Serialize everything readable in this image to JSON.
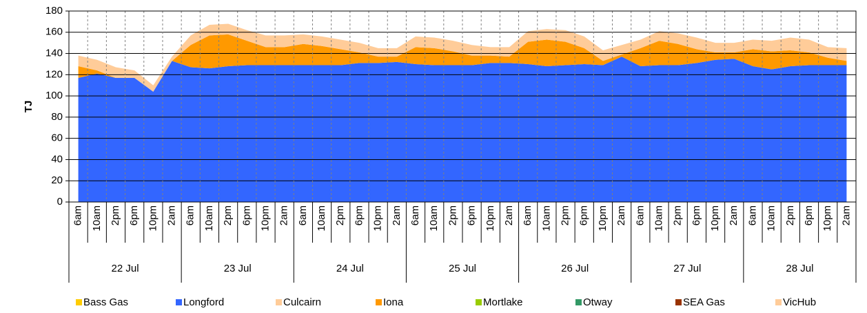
{
  "chart_data": {
    "type": "stacked_area",
    "y_label": "TJ",
    "categories": [
      "6am",
      "10am",
      "2pm",
      "6pm",
      "10pm",
      "2am",
      "6am",
      "10am",
      "2pm",
      "6pm",
      "10pm",
      "2am",
      "6am",
      "10am",
      "2pm",
      "6pm",
      "10pm",
      "2am",
      "6am",
      "10am",
      "2pm",
      "6pm",
      "10pm",
      "2am",
      "6am",
      "10am",
      "2pm",
      "6pm",
      "10pm",
      "2am",
      "6am",
      "10am",
      "2pm",
      "6pm",
      "10pm",
      "2am",
      "6am",
      "10am",
      "2pm",
      "6pm",
      "10pm",
      "2am"
    ],
    "groups": [
      "22 Jul",
      "23 Jul",
      "24 Jul",
      "25 Jul",
      "26 Jul",
      "27 Jul",
      "28 Jul"
    ],
    "ylim": [
      0,
      180
    ],
    "yticks": [
      0,
      20,
      40,
      60,
      80,
      100,
      120,
      140,
      160,
      180
    ],
    "grid": true,
    "legend": "bottom",
    "series": [
      {
        "name": "Bass Gas",
        "color": "#ffcc00",
        "values": [
          0,
          0,
          0,
          0,
          0,
          0,
          0,
          0,
          0,
          0,
          0,
          0,
          0,
          0,
          0,
          0,
          0,
          0,
          0,
          0,
          0,
          0,
          0,
          0,
          0,
          0,
          0,
          0,
          0,
          0,
          0,
          0,
          0,
          0,
          0,
          0,
          0,
          0,
          0,
          0,
          0,
          0
        ]
      },
      {
        "name": "Longford",
        "color": "#3366ff",
        "values": [
          117,
          121,
          117,
          117,
          104,
          133,
          127,
          126,
          128,
          129,
          129,
          129,
          129,
          129,
          129,
          131,
          131,
          132,
          130,
          129,
          129,
          129,
          131,
          131,
          130,
          128,
          129,
          130,
          129,
          137,
          128,
          129,
          129,
          131,
          134,
          135,
          128,
          125,
          128,
          129,
          129,
          129
        ]
      },
      {
        "name": "Culcairn",
        "color": "#ffcc99",
        "values": [
          0,
          0,
          0,
          0,
          0,
          0,
          0,
          0,
          0,
          0,
          0,
          0,
          0,
          0,
          0,
          0,
          0,
          0,
          0,
          0,
          0,
          0,
          0,
          0,
          0,
          0,
          0,
          0,
          0,
          0,
          0,
          0,
          0,
          0,
          0,
          0,
          0,
          0,
          0,
          0,
          0,
          0
        ]
      },
      {
        "name": "Iona",
        "color": "#ff9900",
        "values": [
          11,
          3,
          0,
          0,
          0,
          0,
          21,
          31,
          30,
          23,
          17,
          17,
          20,
          18,
          15,
          10,
          6,
          5,
          16,
          16,
          13,
          9,
          7,
          6,
          21,
          25,
          22,
          15,
          4,
          2,
          17,
          23,
          20,
          13,
          7,
          6,
          16,
          17,
          15,
          12,
          7,
          4
        ]
      },
      {
        "name": "Mortlake",
        "color": "#99cc00",
        "values": [
          0,
          0,
          0,
          0,
          0,
          0,
          0,
          0,
          0,
          0,
          0,
          0,
          0,
          0,
          0,
          0,
          0,
          0,
          0,
          0,
          0,
          0,
          0,
          0,
          0,
          0,
          0,
          0,
          0,
          0,
          0,
          0,
          0,
          0,
          0,
          0,
          0,
          0,
          0,
          0,
          0,
          0
        ]
      },
      {
        "name": "Otway",
        "color": "#339966",
        "values": [
          0,
          0,
          0,
          0,
          0,
          0,
          0,
          0,
          0,
          0,
          0,
          0,
          0,
          0,
          0,
          0,
          0,
          0,
          0,
          0,
          0,
          0,
          0,
          0,
          0,
          0,
          0,
          0,
          0,
          0,
          0,
          0,
          0,
          0,
          0,
          0,
          0,
          0,
          0,
          0,
          0,
          0
        ]
      },
      {
        "name": "SEA Gas",
        "color": "#993300",
        "values": [
          0,
          0,
          0,
          0,
          0,
          0,
          0,
          0,
          0,
          0,
          0,
          0,
          0,
          0,
          0,
          0,
          0,
          0,
          0,
          0,
          0,
          0,
          0,
          0,
          0,
          0,
          0,
          0,
          0,
          0,
          0,
          0,
          0,
          0,
          0,
          0,
          0,
          0,
          0,
          0,
          0,
          0
        ]
      },
      {
        "name": "VicHub",
        "color": "#ffcc99",
        "values": [
          10,
          10,
          10,
          7,
          6,
          4,
          9,
          10,
          10,
          10,
          11,
          11,
          9,
          9,
          9,
          9,
          8,
          8,
          10,
          10,
          10,
          10,
          8,
          9,
          10,
          10,
          11,
          11,
          10,
          9,
          8,
          9,
          10,
          11,
          9,
          9,
          9,
          10,
          12,
          12,
          10,
          12
        ]
      }
    ]
  }
}
